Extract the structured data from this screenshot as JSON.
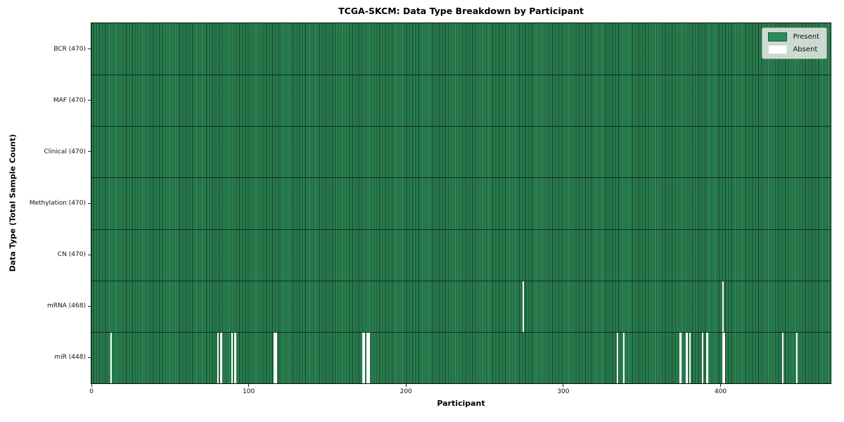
{
  "chart_data": {
    "type": "heatmap",
    "title": "TCGA-SKCM: Data Type Breakdown by Participant",
    "xlabel": "Participant",
    "ylabel": "Data Type (Total Sample Count)",
    "x_min": 0,
    "x_max": 470,
    "x_ticks": [
      0,
      100,
      200,
      300,
      400
    ],
    "grid": "row-dividers-only",
    "colors": {
      "present": "#2e8b57",
      "absent": "#ffffff",
      "cell_edge": "#0a1e12",
      "plot_border": "#101010",
      "legend_bg": "#e9ece9"
    },
    "legend": {
      "position": "upper-right",
      "entries": [
        {
          "label": "Present",
          "color": "#2e8b57"
        },
        {
          "label": "Absent",
          "color": "#ffffff"
        }
      ]
    },
    "rows": [
      {
        "name": "BCR",
        "label": "BCR (470)",
        "present_count": 470,
        "absent_participants": []
      },
      {
        "name": "MAF",
        "label": "MAF (470)",
        "present_count": 470,
        "absent_participants": []
      },
      {
        "name": "Clinical",
        "label": "Clinical (470)",
        "present_count": 470,
        "absent_participants": []
      },
      {
        "name": "Methylation",
        "label": "Methylation (470)",
        "present_count": 470,
        "absent_participants": []
      },
      {
        "name": "CN",
        "label": "CN (470)",
        "present_count": 470,
        "absent_participants": []
      },
      {
        "name": "mRNA",
        "label": "mRNA (468)",
        "present_count": 468,
        "absent_participants": [
          274,
          401
        ]
      },
      {
        "name": "miR",
        "label": "miR (448)",
        "present_count": 448,
        "absent_participants": [
          12,
          80,
          82,
          89,
          91,
          116,
          117,
          172,
          173,
          175,
          176,
          334,
          338,
          374,
          378,
          380,
          388,
          391,
          401,
          402,
          439,
          448
        ]
      }
    ]
  }
}
